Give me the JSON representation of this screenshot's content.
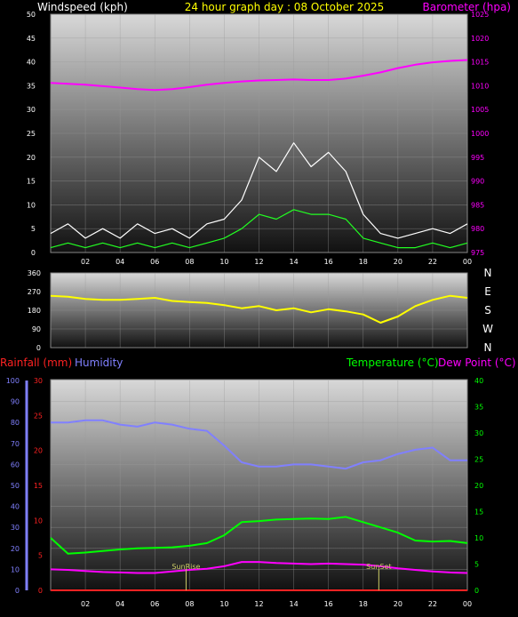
{
  "header": {
    "left_title": "Windspeed (kph)",
    "center_title": "24 hour graph day : 08 October 2025",
    "right_title": "Barometer (hpa)"
  },
  "colors": {
    "windspeed_title": "#ffffff",
    "center_title": "#ffff00",
    "barometer": "#ff00ff",
    "gust": "#ffffff",
    "avg_wind": "#22ff22",
    "direction": "#ffff00",
    "rainfall": "#ff2222",
    "humidity": "#8080ff",
    "temperature": "#00ff00",
    "dewpoint": "#ff00ff",
    "sun_marker": "#cccc66"
  },
  "time_ticks": [
    "02",
    "04",
    "06",
    "08",
    "10",
    "12",
    "14",
    "16",
    "18",
    "20",
    "22",
    "00"
  ],
  "chart_data": [
    {
      "type": "line",
      "title": "Windspeed (kph)",
      "ylabel": "Windspeed (kph)",
      "y2label": "Barometer (hpa)",
      "ylim": [
        0,
        50
      ],
      "y2lim": [
        975,
        1025
      ],
      "y_ticks": [
        "0",
        "5",
        "10",
        "15",
        "20",
        "25",
        "30",
        "35",
        "40",
        "45",
        "50"
      ],
      "y2_ticks": [
        "975",
        "980",
        "985",
        "990",
        "995",
        "1000",
        "1005",
        "1010",
        "1015",
        "1020",
        "1025"
      ],
      "x_hours": [
        0,
        1,
        2,
        3,
        4,
        5,
        6,
        7,
        8,
        9,
        10,
        11,
        12,
        13,
        14,
        15,
        16,
        17,
        18,
        19,
        20,
        21,
        22,
        23,
        24
      ],
      "series": [
        {
          "name": "Barometer (hpa)",
          "axis": "right",
          "values": [
            1010.6,
            1010.4,
            1010.2,
            1009.9,
            1009.6,
            1009.3,
            1009.1,
            1009.3,
            1009.7,
            1010.2,
            1010.6,
            1010.9,
            1011.1,
            1011.2,
            1011.3,
            1011.2,
            1011.2,
            1011.5,
            1012.1,
            1012.8,
            1013.7,
            1014.4,
            1014.9,
            1015.2,
            1015.4
          ]
        },
        {
          "name": "Gust",
          "axis": "left",
          "values": [
            4,
            6,
            3,
            5,
            3,
            6,
            4,
            5,
            3,
            6,
            7,
            11,
            20,
            17,
            23,
            18,
            21,
            17,
            8,
            4,
            3,
            4,
            5,
            4,
            6
          ]
        },
        {
          "name": "Average",
          "axis": "left",
          "values": [
            1,
            2,
            1,
            2,
            1,
            2,
            1,
            2,
            1,
            2,
            3,
            5,
            8,
            7,
            9,
            8,
            8,
            7,
            3,
            2,
            1,
            1,
            2,
            1,
            2
          ]
        }
      ]
    },
    {
      "type": "scatter",
      "title": "Wind direction",
      "ylim": [
        0,
        360
      ],
      "y_ticks": [
        "0",
        "90",
        "180",
        "270",
        "360"
      ],
      "compass_labels": [
        "N",
        "W",
        "S",
        "E",
        "N"
      ],
      "x_hours": [
        0,
        1,
        2,
        3,
        4,
        5,
        6,
        7,
        8,
        9,
        10,
        11,
        12,
        13,
        14,
        15,
        16,
        17,
        18,
        19,
        20,
        21,
        22,
        23,
        24
      ],
      "series": [
        {
          "name": "Direction",
          "values": [
            250,
            245,
            235,
            230,
            230,
            235,
            240,
            225,
            220,
            215,
            205,
            190,
            200,
            180,
            190,
            170,
            185,
            175,
            160,
            120,
            150,
            200,
            230,
            250,
            240
          ]
        }
      ]
    },
    {
      "type": "line",
      "legend": [
        "Rainfall (mm)",
        "Humidity",
        "Temperature (°C)",
        "Dew Point (°C)"
      ],
      "ylim_humidity": [
        0,
        100
      ],
      "ylim_rain": [
        0,
        30
      ],
      "y2lim_temperature": [
        0,
        40
      ],
      "humidity_ticks": [
        "0",
        "10",
        "20",
        "30",
        "40",
        "50",
        "60",
        "70",
        "80",
        "90",
        "100"
      ],
      "rain_ticks": [
        "0",
        "5",
        "10",
        "15",
        "20",
        "25",
        "30"
      ],
      "temperature_ticks": [
        "0",
        "5",
        "10",
        "15",
        "20",
        "25",
        "30",
        "35",
        "40"
      ],
      "x_hours": [
        0,
        1,
        2,
        3,
        4,
        5,
        6,
        7,
        8,
        9,
        10,
        11,
        12,
        13,
        14,
        15,
        16,
        17,
        18,
        19,
        20,
        21,
        22,
        23,
        24
      ],
      "series": [
        {
          "name": "Humidity",
          "axis": "left",
          "values": [
            80,
            80,
            81,
            81,
            79,
            78,
            80,
            79,
            77,
            76,
            69,
            61,
            59,
            59,
            60,
            60,
            59,
            58,
            61,
            62,
            65,
            67,
            68,
            62,
            62
          ]
        },
        {
          "name": "Rainfall (mm)",
          "axis": "rain",
          "values": [
            0,
            0,
            0,
            0,
            0,
            0,
            0,
            0,
            0,
            0,
            0,
            0,
            0,
            0,
            0,
            0,
            0,
            0,
            0,
            0,
            0,
            0,
            0,
            0,
            0
          ]
        },
        {
          "name": "Temperature (°C)",
          "axis": "right",
          "values": [
            10.0,
            7.0,
            7.2,
            7.5,
            7.8,
            8.0,
            8.1,
            8.2,
            8.5,
            9.0,
            10.5,
            13.0,
            13.2,
            13.5,
            13.6,
            13.7,
            13.6,
            14.0,
            13.0,
            12.0,
            11.0,
            9.5,
            9.3,
            9.4,
            9.0
          ]
        },
        {
          "name": "Dew Point (°C)",
          "axis": "right",
          "values": [
            4.0,
            3.9,
            3.7,
            3.5,
            3.4,
            3.3,
            3.3,
            3.6,
            3.9,
            4.1,
            4.6,
            5.4,
            5.4,
            5.2,
            5.1,
            5.0,
            5.1,
            5.0,
            4.9,
            4.6,
            4.2,
            3.9,
            3.6,
            3.4,
            3.3
          ]
        }
      ],
      "markers": [
        {
          "label": "SunRise",
          "hour": 7.8
        },
        {
          "label": "SunSet",
          "hour": 18.9
        }
      ]
    }
  ]
}
